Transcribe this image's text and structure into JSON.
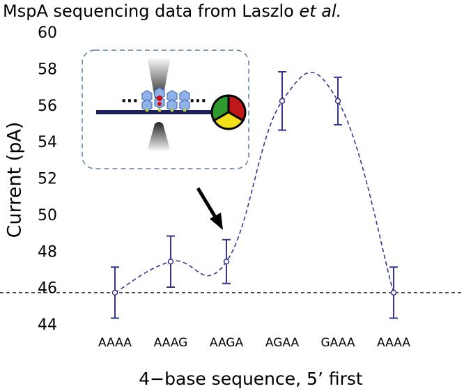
{
  "chart_data": {
    "type": "errorbar",
    "title": "MspA sequencing data from Laszlo",
    "title_emphasis": "et al.",
    "y_label": "Current (pA)",
    "x_label": "4−base sequence, 5’ first",
    "categories": [
      "AAAA",
      "AAAG",
      "AAGA",
      "AGAA",
      "GAAA",
      "AAAA"
    ],
    "series": [
      {
        "name": "Current",
        "color": "#35358c",
        "values": [
          45.8,
          47.5,
          47.5,
          56.3,
          56.3,
          45.8
        ],
        "errors": [
          1.4,
          1.4,
          1.2,
          1.6,
          1.3,
          1.4
        ]
      }
    ],
    "reference_line": 45.8,
    "ylim": [
      44,
      60
    ],
    "yticks": [
      44,
      46,
      48,
      50,
      52,
      54,
      56,
      58,
      60
    ]
  }
}
